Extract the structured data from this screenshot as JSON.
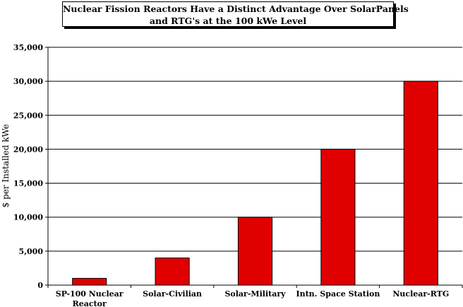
{
  "chart_data": {
    "type": "bar",
    "title_lines": [
      "Nuclear Fission Reactors Have a Distinct Advantage Over SolarPanels",
      "and RTG's at the 100 kWe Level"
    ],
    "xlabel": "",
    "ylabel": "$ per Installed kWe",
    "ylim": [
      0,
      35000
    ],
    "yticks": [
      "0",
      "5,000",
      "10,000",
      "15,000",
      "20,000",
      "25,000",
      "30,000",
      "35,000"
    ],
    "grid": true,
    "legend": "none",
    "bar_color": "#e00000",
    "categories": [
      [
        "SP-100 Nuclear",
        "Reactor"
      ],
      [
        "Solar-Civilian"
      ],
      [
        "Solar-Military"
      ],
      [
        "Intn. Space Station"
      ],
      [
        "Nuclear-RTG"
      ]
    ],
    "values": [
      1000,
      4000,
      10000,
      20000,
      30000
    ]
  }
}
